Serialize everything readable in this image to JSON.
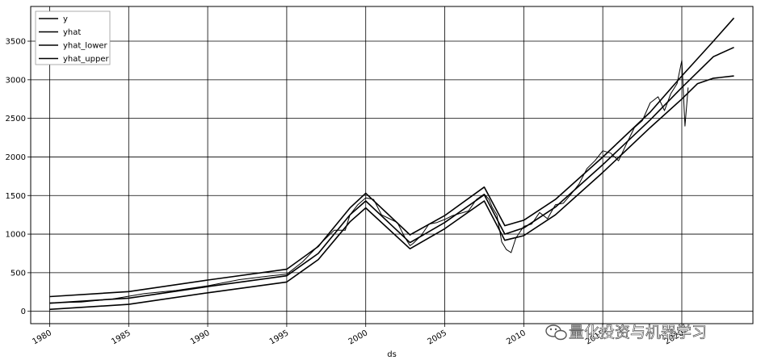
{
  "chart_data": {
    "type": "line",
    "xlabel": "ds",
    "ylabel": "",
    "title": "",
    "xlim": [
      1978.8,
      2024.5
    ],
    "ylim": [
      -160,
      3950
    ],
    "grid": true,
    "legend_placement": "top-left",
    "x_ticks": [
      1980,
      1985,
      1990,
      1995,
      2000,
      2005,
      2010,
      2015,
      2020
    ],
    "x_tick_labels": [
      "1980",
      "1985",
      "1990",
      "1995",
      "2000",
      "2005",
      "2010",
      "2015",
      "2020"
    ],
    "y_ticks": [
      0,
      500,
      1000,
      1500,
      2000,
      2500,
      3000,
      3500
    ],
    "y_tick_labels": [
      "0",
      "500",
      "1000",
      "1500",
      "2000",
      "2500",
      "3000",
      "3500"
    ],
    "series": [
      {
        "name": "y",
        "color": "#000000",
        "x": [
          1980,
          1982,
          1984,
          1986,
          1988,
          1990,
          1992,
          1994,
          1995,
          1996,
          1997,
          1998,
          1998.7,
          1999,
          1999.5,
          2000,
          2000.5,
          2001,
          2001.5,
          2002,
          2002.5,
          2002.8,
          2003,
          2003.5,
          2004,
          2004.5,
          2005,
          2005.5,
          2006,
          2006.5,
          2007,
          2007.5,
          2007.8,
          2008,
          2008.3,
          2008.6,
          2008.9,
          2009.2,
          2009.5,
          2010,
          2010.5,
          2011,
          2011.5,
          2012,
          2012.5,
          2013,
          2013.5,
          2014,
          2014.5,
          2015,
          2015.5,
          2016,
          2016.5,
          2017,
          2017.5,
          2018,
          2018.5,
          2018.9,
          2019.3,
          2019.7,
          2020.0,
          2020.2,
          2020.4
        ],
        "values": [
          110,
          120,
          160,
          230,
          270,
          330,
          410,
          460,
          480,
          640,
          850,
          1050,
          1050,
          1250,
          1380,
          1470,
          1450,
          1250,
          1200,
          1150,
          950,
          850,
          880,
          980,
          1130,
          1150,
          1190,
          1240,
          1270,
          1300,
          1450,
          1520,
          1450,
          1350,
          1250,
          900,
          800,
          760,
          950,
          1100,
          1130,
          1280,
          1200,
          1380,
          1400,
          1520,
          1650,
          1850,
          1950,
          2080,
          2050,
          1950,
          2170,
          2380,
          2470,
          2700,
          2780,
          2600,
          2820,
          2950,
          3250,
          2400,
          2900
        ]
      },
      {
        "name": "yhat",
        "color": "#000000",
        "x": [
          1980,
          1985,
          1990,
          1995,
          1997,
          1999,
          2000,
          2002.8,
          2005,
          2007.5,
          2008.8,
          2010,
          2012,
          2015,
          2018,
          2020,
          2022,
          2023.3
        ],
        "values": [
          105,
          170,
          320,
          460,
          750,
          1250,
          1430,
          890,
          1150,
          1510,
          1000,
          1080,
          1350,
          1900,
          2480,
          2900,
          3300,
          3420
        ]
      },
      {
        "name": "yhat_lower",
        "color": "#000000",
        "x": [
          1980,
          1985,
          1990,
          1995,
          1997,
          1999,
          2000,
          2002.8,
          2005,
          2007.5,
          2008.8,
          2010,
          2012,
          2015,
          2018,
          2020,
          2021,
          2022,
          2023.3
        ],
        "values": [
          25,
          90,
          240,
          380,
          670,
          1160,
          1340,
          810,
          1070,
          1430,
          920,
          980,
          1250,
          1800,
          2380,
          2750,
          2950,
          3020,
          3050
        ]
      },
      {
        "name": "yhat_upper",
        "color": "#000000",
        "x": [
          1980,
          1985,
          1990,
          1995,
          1997,
          1999,
          2000,
          2002.8,
          2005,
          2007.5,
          2008.8,
          2010,
          2012,
          2015,
          2018,
          2020,
          2022,
          2023.3
        ],
        "values": [
          190,
          255,
          405,
          545,
          840,
          1340,
          1530,
          990,
          1240,
          1610,
          1110,
          1180,
          1450,
          2000,
          2580,
          3050,
          3500,
          3800
        ]
      }
    ]
  },
  "watermark": {
    "text": "量化投资与机器学习",
    "icon": "wechat-icon"
  }
}
